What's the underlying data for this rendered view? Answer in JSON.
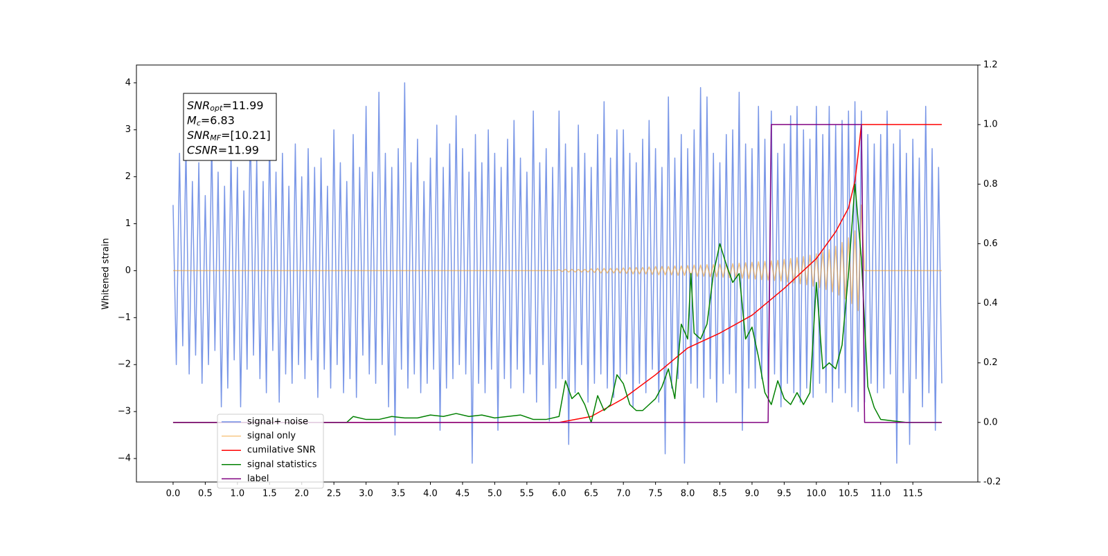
{
  "chart_data": {
    "type": "line",
    "y_label": "Whitened strain",
    "annotations": [
      {
        "text": "SNR",
        "sub": "opt",
        "rest": "=11.99"
      },
      {
        "text": "M",
        "sub": "c",
        "rest": "=6.83"
      },
      {
        "text": "SNR",
        "sub": "MF",
        "rest": "=[10.21]"
      },
      {
        "text": "CSNR",
        "rest": "=11.99"
      }
    ],
    "xlim": [
      -0.57,
      12.51
    ],
    "xticks": [
      {
        "value": 0,
        "label": "0.0"
      },
      0.5,
      {
        "value": 1,
        "label": "1.0"
      },
      1.5,
      {
        "value": 2,
        "label": "2.0"
      },
      2.5,
      {
        "value": 3,
        "label": "3.0"
      },
      3.5,
      {
        "value": 4,
        "label": "4.0"
      },
      4.5,
      {
        "value": 5,
        "label": "5.0"
      },
      5.5,
      {
        "value": 6,
        "label": "6.0"
      },
      6.5,
      {
        "value": 7,
        "label": "7.0"
      },
      7.5,
      {
        "value": 8,
        "label": "8.0"
      },
      8.5,
      {
        "value": 9,
        "label": "9.0"
      },
      9.5,
      {
        "value": 10,
        "label": "10.0"
      },
      10.5,
      {
        "value": 11,
        "label": "11.0"
      },
      11.5
    ],
    "ylim": [
      -4.5,
      4.38
    ],
    "yticks": [
      {
        "value": -4,
        "label": "−4"
      },
      {
        "value": -3,
        "label": "−3"
      },
      {
        "value": -2,
        "label": "−2"
      },
      {
        "value": -1,
        "label": "−1"
      },
      0,
      1,
      2,
      3,
      4
    ],
    "y2lim": [
      -0.2,
      1.2
    ],
    "y2ticks": [
      -0.2,
      {
        "value": 0,
        "label": "0.0"
      },
      0.2,
      0.4,
      0.6,
      0.8,
      {
        "value": 1,
        "label": "1.0"
      },
      1.2
    ],
    "legend": "lower left",
    "x": [
      0,
      0.05,
      0.1,
      0.15,
      0.2,
      0.25,
      0.3,
      0.35,
      0.4,
      0.45,
      0.5,
      0.55,
      0.6,
      0.65,
      0.7,
      0.75,
      0.8,
      0.85,
      0.9,
      0.95,
      1,
      1.05,
      1.1,
      1.15,
      1.2,
      1.25,
      1.3,
      1.35,
      1.4,
      1.45,
      1.5,
      1.55,
      1.6,
      1.65,
      1.7,
      1.75,
      1.8,
      1.85,
      1.9,
      1.95,
      2,
      2.05,
      2.1,
      2.15,
      2.2,
      2.25,
      2.3,
      2.35,
      2.4,
      2.45,
      2.5,
      2.55,
      2.6,
      2.65,
      2.7,
      2.75,
      2.8,
      2.85,
      2.9,
      2.95,
      3,
      3.05,
      3.1,
      3.15,
      3.2,
      3.25,
      3.3,
      3.35,
      3.4,
      3.45,
      3.5,
      3.55,
      3.6,
      3.65,
      3.7,
      3.75,
      3.8,
      3.85,
      3.9,
      3.95,
      4,
      4.05,
      4.1,
      4.15,
      4.2,
      4.25,
      4.3,
      4.35,
      4.4,
      4.45,
      4.5,
      4.55,
      4.6,
      4.65,
      4.7,
      4.75,
      4.8,
      4.85,
      4.9,
      4.95,
      5,
      5.05,
      5.1,
      5.15,
      5.2,
      5.25,
      5.3,
      5.35,
      5.4,
      5.45,
      5.5,
      5.55,
      5.6,
      5.65,
      5.7,
      5.75,
      5.8,
      5.85,
      5.9,
      5.95,
      6,
      6.05,
      6.1,
      6.15,
      6.2,
      6.25,
      6.3,
      6.35,
      6.4,
      6.45,
      6.5,
      6.55,
      6.6,
      6.65,
      6.7,
      6.75,
      6.8,
      6.85,
      6.9,
      6.95,
      7,
      7.05,
      7.1,
      7.15,
      7.2,
      7.25,
      7.3,
      7.35,
      7.4,
      7.45,
      7.5,
      7.55,
      7.6,
      7.65,
      7.7,
      7.75,
      7.8,
      7.85,
      7.9,
      7.95,
      8,
      8.05,
      8.1,
      8.15,
      8.2,
      8.25,
      8.3,
      8.35,
      8.4,
      8.45,
      8.5,
      8.55,
      8.6,
      8.65,
      8.7,
      8.75,
      8.8,
      8.85,
      8.9,
      8.95,
      9,
      9.05,
      9.1,
      9.15,
      9.2,
      9.25,
      9.3,
      9.35,
      9.4,
      9.45,
      9.5,
      9.55,
      9.6,
      9.65,
      9.7,
      9.75,
      9.8,
      9.85,
      9.9,
      9.95,
      10,
      10.05,
      10.1,
      10.15,
      10.2,
      10.25,
      10.3,
      10.35,
      10.4,
      10.45,
      10.5,
      10.55,
      10.6,
      10.65,
      10.7,
      10.75,
      10.8,
      10.85,
      10.9,
      10.95,
      11,
      11.05,
      11.1,
      11.15,
      11.2,
      11.25,
      11.3,
      11.35,
      11.4,
      11.45,
      11.5,
      11.55,
      11.6,
      11.65,
      11.7,
      11.75,
      11.8,
      11.85,
      11.9,
      11.95
    ],
    "series": [
      {
        "name": "signal+ noise",
        "color": "#7391e6",
        "values": [
          1.4,
          -2.0,
          2.5,
          -1.6,
          2.7,
          -2.2,
          1.9,
          -1.8,
          2.3,
          -2.4,
          1.6,
          -2.0,
          2.8,
          -1.7,
          2.1,
          -2.9,
          1.8,
          -2.5,
          2.6,
          -1.9,
          2.2,
          -2.9,
          1.7,
          -2.1,
          3.2,
          -1.8,
          2.4,
          -2.3,
          1.9,
          -2.6,
          2.9,
          -1.7,
          2.1,
          -2.8,
          2.5,
          -2.2,
          1.8,
          -2.4,
          2.7,
          -2.0,
          2.0,
          -2.3,
          2.6,
          -1.9,
          2.2,
          -2.7,
          2.4,
          -2.1,
          1.8,
          -2.5,
          3.0,
          -2.0,
          2.3,
          -2.6,
          1.9,
          -2.3,
          2.9,
          -2.7,
          2.2,
          -1.8,
          3.5,
          -2.2,
          2.1,
          -2.4,
          3.8,
          -2.0,
          2.5,
          -2.9,
          2.2,
          -3.5,
          2.6,
          -2.1,
          4.0,
          -2.5,
          2.3,
          -2.2,
          2.8,
          -2.6,
          1.9,
          -2.4,
          2.4,
          -2.1,
          3.1,
          -3.4,
          2.2,
          -2.5,
          2.7,
          -2.3,
          3.3,
          -2.0,
          2.6,
          -2.2,
          2.1,
          -4.1,
          2.9,
          -2.4,
          2.3,
          -2.6,
          3.0,
          -2.1,
          2.5,
          -3.4,
          2.2,
          -2.3,
          2.8,
          -2.5,
          3.2,
          -2.1,
          2.4,
          -2.6,
          2.1,
          -2.2,
          3.4,
          -2.8,
          2.3,
          -2.0,
          2.6,
          -3.2,
          2.2,
          -2.5,
          3.4,
          -2.3,
          2.7,
          -3.7,
          2.2,
          -2.6,
          3.1,
          -2.0,
          2.5,
          -2.8,
          2.2,
          -2.4,
          2.9,
          -2.2,
          3.6,
          -2.5,
          2.4,
          -2.7,
          3.0,
          -2.3,
          3.0,
          -2.2,
          2.5,
          -2.9,
          2.3,
          -2.4,
          2.8,
          -2.6,
          3.2,
          -2.1,
          2.6,
          -2.8,
          2.2,
          -3.9,
          3.7,
          -2.5,
          2.4,
          -2.3,
          2.9,
          -4.1,
          2.6,
          -2.4,
          3.0,
          -2.5,
          3.9,
          -2.7,
          3.7,
          -2.3,
          2.5,
          -2.8,
          2.3,
          -2.4,
          2.9,
          -2.2,
          3.0,
          -2.6,
          3.8,
          -3.4,
          2.7,
          -2.5,
          2.6,
          -2.5,
          3.5,
          -2.3,
          2.8,
          -2.6,
          3.4,
          -2.2,
          2.5,
          -2.9,
          2.7,
          -2.4,
          3.3,
          -2.6,
          3.5,
          -2.8,
          3.0,
          -2.5,
          2.8,
          -2.7,
          3.5,
          -2.4,
          2.9,
          -2.6,
          3.5,
          -2.8,
          3.1,
          -2.5,
          3.2,
          -2.6,
          3.4,
          -2.9,
          3.6,
          -3.0,
          3.4,
          -2.8,
          2.9,
          -2.4,
          2.7,
          -2.6,
          2.9,
          -2.5,
          3.4,
          -2.2,
          2.7,
          -4.1,
          3.0,
          -2.6,
          2.5,
          -3.7,
          2.8,
          -2.3,
          2.4,
          -2.9,
          3.5,
          -2.6,
          2.6,
          -3.4,
          2.2,
          -2.4
        ]
      },
      {
        "name": "signal only",
        "color": "#f0a030",
        "values": [
          0,
          0,
          0,
          0,
          0,
          0,
          0,
          0,
          0,
          0,
          0,
          0,
          0,
          0,
          0,
          0,
          0,
          0,
          0,
          0,
          0,
          0,
          0,
          0,
          0,
          0,
          0,
          0,
          0,
          0,
          0,
          0,
          0,
          0,
          0,
          0,
          0,
          0,
          0,
          0,
          0,
          0,
          0,
          0,
          0,
          0,
          0,
          0,
          0,
          0,
          0,
          0,
          0,
          0,
          0,
          0,
          0,
          0,
          0,
          0,
          0,
          0,
          0,
          0,
          0,
          0,
          0,
          0,
          0,
          0,
          0,
          0,
          0,
          0,
          0,
          0,
          0,
          0,
          0,
          0,
          0,
          0,
          0,
          0,
          0,
          0,
          0,
          0,
          0,
          0,
          0,
          0,
          0,
          0,
          0,
          0,
          0,
          0,
          0,
          0,
          0,
          0,
          0,
          0,
          0,
          0,
          0,
          0,
          0,
          0,
          0,
          0,
          0,
          0,
          0,
          0,
          0,
          0,
          0,
          0,
          0.02,
          -0.02,
          0.03,
          -0.03,
          0.03,
          -0.03,
          0.03,
          -0.03,
          0.03,
          -0.03,
          0.04,
          -0.04,
          0.05,
          -0.05,
          0.05,
          -0.05,
          0.05,
          -0.05,
          0.05,
          -0.05,
          0.06,
          -0.06,
          0.07,
          -0.07,
          0.07,
          -0.07,
          0.07,
          -0.07,
          0.08,
          -0.08,
          0.09,
          -0.09,
          0.09,
          -0.09,
          0.09,
          -0.09,
          0.1,
          -0.1,
          0.1,
          -0.1,
          0.11,
          -0.11,
          0.12,
          -0.12,
          0.12,
          -0.12,
          0.13,
          -0.13,
          0.13,
          -0.13,
          0.14,
          -0.14,
          0.15,
          -0.15,
          0.15,
          -0.15,
          0.16,
          -0.16,
          0.17,
          -0.17,
          0.18,
          -0.18,
          0.19,
          -0.19,
          0.2,
          -0.2,
          0.21,
          -0.21,
          0.22,
          -0.22,
          0.24,
          -0.24,
          0.26,
          -0.26,
          0.28,
          -0.28,
          0.3,
          -0.3,
          0.33,
          -0.33,
          0.36,
          -0.36,
          0.4,
          -0.4,
          0.45,
          -0.45,
          0.52,
          -0.52,
          0.6,
          -0.6,
          0.7,
          -0.7,
          0.85,
          -0.85,
          1.4,
          0,
          0,
          0,
          0,
          0,
          0,
          0,
          0,
          0,
          0,
          0,
          0,
          0,
          0,
          0,
          0,
          0,
          0,
          0,
          0,
          0,
          0,
          0,
          0,
          0
        ]
      },
      {
        "name": "cumilative SNR",
        "color": "#ff0000",
        "axis": "y2",
        "x": [
          0,
          6.0,
          6.5,
          7.0,
          7.5,
          8.0,
          8.5,
          9.0,
          9.5,
          10.0,
          10.3,
          10.5,
          10.6,
          10.65,
          10.7,
          11.95
        ],
        "values": [
          0,
          0,
          0.02,
          0.08,
          0.16,
          0.25,
          0.3,
          0.36,
          0.45,
          0.55,
          0.64,
          0.72,
          0.81,
          0.9,
          1.0,
          1.0
        ]
      },
      {
        "name": "signal statistics",
        "color": "#008000",
        "axis": "y2",
        "x": [
          0,
          2.7,
          2.8,
          3.0,
          3.2,
          3.4,
          3.6,
          3.8,
          4.0,
          4.2,
          4.4,
          4.6,
          4.8,
          5.0,
          5.2,
          5.4,
          5.6,
          5.8,
          6.0,
          6.1,
          6.2,
          6.3,
          6.4,
          6.5,
          6.6,
          6.7,
          6.8,
          6.9,
          7.0,
          7.1,
          7.2,
          7.3,
          7.4,
          7.5,
          7.6,
          7.7,
          7.8,
          7.9,
          8.0,
          8.05,
          8.1,
          8.2,
          8.3,
          8.4,
          8.5,
          8.6,
          8.7,
          8.8,
          8.9,
          9.0,
          9.1,
          9.2,
          9.3,
          9.4,
          9.5,
          9.6,
          9.7,
          9.8,
          9.9,
          10.0,
          10.1,
          10.2,
          10.3,
          10.4,
          10.5,
          10.6,
          10.7,
          10.8,
          10.9,
          11.0,
          11.2,
          11.4,
          11.95
        ],
        "values": [
          0,
          0,
          0.02,
          0.01,
          0.01,
          0.02,
          0.015,
          0.015,
          0.025,
          0.02,
          0.03,
          0.02,
          0.025,
          0.015,
          0.02,
          0.025,
          0.01,
          0.01,
          0.02,
          0.14,
          0.08,
          0.1,
          0.06,
          0,
          0.09,
          0.04,
          0.06,
          0.16,
          0.13,
          0.06,
          0.04,
          0.04,
          0.06,
          0.08,
          0.12,
          0.18,
          0.08,
          0.33,
          0.28,
          0.5,
          0.3,
          0.28,
          0.33,
          0.5,
          0.6,
          0.53,
          0.47,
          0.5,
          0.28,
          0.32,
          0.22,
          0.1,
          0.06,
          0.14,
          0.08,
          0.06,
          0.1,
          0.06,
          0.1,
          0.47,
          0.18,
          0.2,
          0.18,
          0.26,
          0.5,
          0.8,
          0.55,
          0.12,
          0.05,
          0.01,
          0.005,
          0,
          0
        ]
      },
      {
        "name": "label",
        "color": "#800080",
        "axis": "y2",
        "x": [
          0,
          9.25,
          9.3,
          10.7,
          10.75,
          11.95
        ],
        "values": [
          0,
          0,
          1,
          1,
          0,
          0
        ]
      }
    ]
  }
}
